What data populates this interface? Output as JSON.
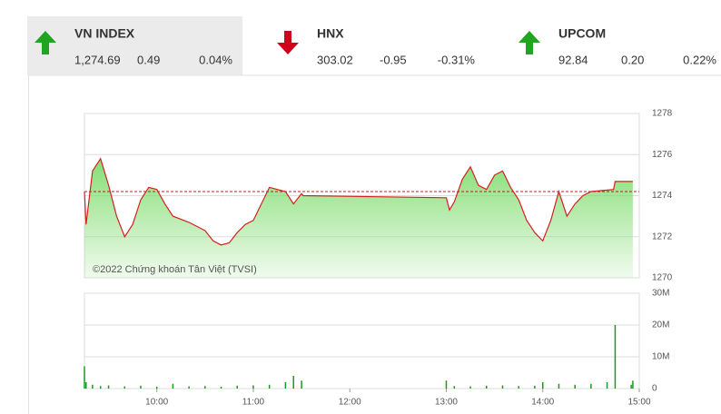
{
  "tickers": [
    {
      "name": "VN INDEX",
      "value": "1,274.69",
      "change": "0.49",
      "percent": "0.04%",
      "direction": "up"
    },
    {
      "name": "HNX",
      "value": "303.02",
      "change": "-0.95",
      "percent": "-0.31%",
      "direction": "down"
    },
    {
      "name": "UPCOM",
      "value": "92.84",
      "change": "0.20",
      "percent": "0.22%",
      "direction": "up"
    }
  ],
  "chart_data": [
    {
      "type": "line",
      "annotation": "©2022 Chứng khoán Tân Việt (TVSI)",
      "x": [
        "09:15",
        "09:16",
        "09:20",
        "09:25",
        "09:30",
        "09:35",
        "09:40",
        "09:45",
        "09:50",
        "09:55",
        "10:00",
        "10:05",
        "10:10",
        "10:20",
        "10:30",
        "10:35",
        "10:40",
        "10:45",
        "10:50",
        "10:55",
        "11:00",
        "11:05",
        "11:10",
        "11:15",
        "11:20",
        "11:25",
        "11:30",
        "11:31",
        "13:00",
        "13:02",
        "13:05",
        "13:10",
        "13:15",
        "13:20",
        "13:25",
        "13:30",
        "13:35",
        "13:40",
        "13:45",
        "13:50",
        "13:55",
        "14:00",
        "14:05",
        "14:10",
        "14:15",
        "14:20",
        "14:25",
        "14:30",
        "14:44",
        "14:45",
        "14:56"
      ],
      "values": [
        1274.2,
        1272.6,
        1275.2,
        1275.8,
        1274.5,
        1273.0,
        1272.0,
        1272.6,
        1273.8,
        1274.4,
        1274.3,
        1273.6,
        1273.0,
        1272.7,
        1272.3,
        1271.8,
        1271.6,
        1271.7,
        1272.2,
        1272.6,
        1272.8,
        1273.6,
        1274.4,
        1274.3,
        1274.2,
        1273.6,
        1274.1,
        1274.0,
        1273.9,
        1273.3,
        1273.7,
        1274.8,
        1275.4,
        1274.5,
        1274.3,
        1275.0,
        1275.2,
        1274.4,
        1273.8,
        1272.8,
        1272.2,
        1271.8,
        1272.8,
        1274.2,
        1273.0,
        1273.6,
        1274.0,
        1274.2,
        1274.3,
        1274.69,
        1274.69
      ],
      "color": "#d61f1f",
      "area_color": "#7fdc6e",
      "reference": 1274.2,
      "reference_color": "#b02020",
      "xlim": [
        "09:15",
        "15:00"
      ],
      "ylim": [
        1270,
        1278
      ],
      "yticks": [
        1270,
        1272,
        1274,
        1276,
        1278
      ],
      "grid": true
    },
    {
      "type": "bar",
      "x": [
        "09:15",
        "09:16",
        "09:20",
        "09:25",
        "09:30",
        "09:40",
        "09:50",
        "10:00",
        "10:10",
        "10:20",
        "10:30",
        "10:40",
        "10:50",
        "11:00",
        "11:10",
        "11:20",
        "11:25",
        "11:30",
        "13:00",
        "13:05",
        "13:15",
        "13:25",
        "13:35",
        "13:45",
        "13:55",
        "14:00",
        "14:10",
        "14:20",
        "14:30",
        "14:40",
        "14:45",
        "14:55",
        "14:56"
      ],
      "values": [
        7000000,
        2000000,
        1200000,
        800000,
        1000000,
        700000,
        900000,
        600000,
        1500000,
        700000,
        800000,
        600000,
        900000,
        1000000,
        1200000,
        2000000,
        4000000,
        2500000,
        2500000,
        800000,
        700000,
        900000,
        1000000,
        800000,
        900000,
        2000000,
        1500000,
        1200000,
        1500000,
        2000000,
        20000000,
        1200000,
        2500000
      ],
      "color": "#1a9a1a",
      "xlim": [
        "09:15",
        "15:00"
      ],
      "xticks": [
        "10:00",
        "11:00",
        "12:00",
        "13:00",
        "14:00",
        "15:00"
      ],
      "ylim": [
        0,
        30000000
      ],
      "yticks": [
        0,
        {
          "value": 10000000,
          "label": "10M"
        },
        {
          "value": 20000000,
          "label": "20M"
        },
        {
          "value": 30000000,
          "label": "30M"
        }
      ],
      "grid": true
    }
  ]
}
